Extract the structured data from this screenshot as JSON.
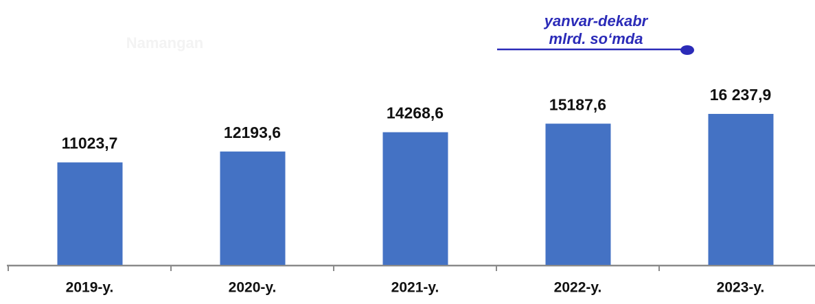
{
  "chart_data": {
    "type": "bar",
    "subtitle": "Namangan",
    "annotation": [
      "yanvar-dekabr",
      "mlrd. so‘mda"
    ],
    "categories": [
      "2019-y.",
      "2020-y.",
      "2021-y.",
      "2022-y.",
      "2023-y."
    ],
    "values": [
      11023.7,
      12193.6,
      14268.6,
      15187.6,
      16237.9
    ],
    "value_labels": [
      "11023,7",
      "12193,6",
      "14268,6",
      "15187,6",
      "16 237,9"
    ],
    "color": "#4472c4",
    "ylim": [
      0,
      20000
    ]
  }
}
